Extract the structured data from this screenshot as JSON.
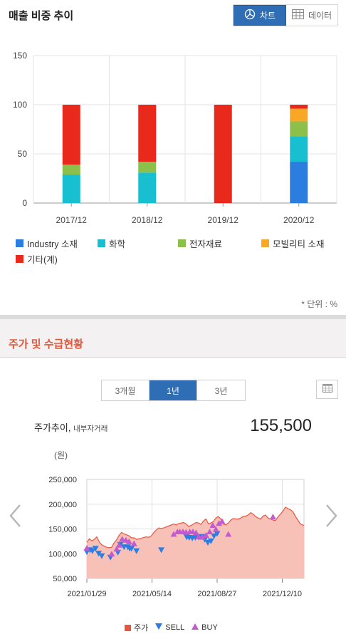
{
  "section1": {
    "title": "매출 비중 추이",
    "toggle": {
      "chart_label": "차트",
      "data_label": "데이터"
    },
    "unit_note": "* 단위 : %"
  },
  "section2": {
    "title": "주가 및 수급현황",
    "periods": [
      "3개월",
      "1년",
      "3년"
    ],
    "active_period": "1년",
    "price_title": "주가추이,",
    "price_subtitle": "내부자거래",
    "price_value": "155,500",
    "unit_label": "(원)",
    "legend": {
      "price": "주가",
      "sell": "SELL",
      "buy": "BUY"
    }
  },
  "colors": {
    "industry": "#2b7de0",
    "chem": "#17bfd1",
    "elec": "#8cc04a",
    "mobility": "#f9a825",
    "etc": "#e8291c",
    "area_fill": "#f8c1b8",
    "area_line": "#e8553e",
    "sell": "#2b7de0",
    "buy": "#c45ad1",
    "accent": "#2f6db5"
  },
  "chart_data": [
    {
      "type": "bar",
      "stacked": true,
      "categories": [
        "2017/12",
        "2018/12",
        "2019/12",
        "2020/12"
      ],
      "ylim": [
        0,
        150
      ],
      "yticks": [
        0,
        50,
        100,
        150
      ],
      "grid": true,
      "legend_position": "bottom",
      "series": [
        {
          "name": "Industry 소재",
          "color_key": "industry",
          "values": [
            0,
            0,
            0,
            42
          ]
        },
        {
          "name": "화학",
          "color_key": "chem",
          "values": [
            29,
            31,
            0,
            26
          ]
        },
        {
          "name": "전자재료",
          "color_key": "elec",
          "values": [
            10,
            11,
            0,
            15
          ]
        },
        {
          "name": "모빌리티 소재",
          "color_key": "mobility",
          "values": [
            0,
            0,
            0,
            13
          ]
        },
        {
          "name": "기타(계)",
          "color_key": "etc",
          "values": [
            61,
            58,
            100,
            4
          ]
        }
      ]
    },
    {
      "type": "area",
      "xlabels": [
        "2021/01/29",
        "2021/05/14",
        "2021/08/27",
        "2021/12/10"
      ],
      "ylim": [
        50000,
        250000
      ],
      "yticks": [
        "50,000",
        "100,000",
        "150,000",
        "200,000",
        "250,000"
      ],
      "ytick_values": [
        50000,
        100000,
        150000,
        200000,
        250000
      ],
      "legend_position": "bottom",
      "x_range_days": [
        0,
        350
      ],
      "xlabel_days": [
        0,
        105,
        210,
        315
      ],
      "series_price": {
        "name": "주가",
        "days": [
          0,
          4,
          8,
          12,
          16,
          20,
          24,
          28,
          32,
          36,
          40,
          44,
          48,
          52,
          56,
          60,
          64,
          68,
          72,
          76,
          80,
          84,
          88,
          92,
          96,
          100,
          104,
          108,
          112,
          116,
          120,
          124,
          128,
          132,
          136,
          140,
          144,
          148,
          152,
          156,
          160,
          164,
          168,
          172,
          176,
          180,
          184,
          188,
          192,
          196,
          200,
          204,
          208,
          212,
          216,
          220,
          224,
          228,
          232,
          236,
          240,
          244,
          248,
          252,
          256,
          260,
          264,
          268,
          272,
          276,
          280,
          284,
          288,
          292,
          296,
          300,
          304,
          308,
          312,
          316,
          320,
          324,
          328,
          332,
          336,
          340,
          344,
          350
        ],
        "values": [
          123000,
          130000,
          126000,
          129000,
          134000,
          124000,
          118000,
          115000,
          113000,
          112000,
          113000,
          122000,
          128000,
          137000,
          143000,
          140000,
          138000,
          136000,
          132000,
          132000,
          129000,
          130000,
          131000,
          133000,
          134000,
          133000,
          136000,
          143000,
          148000,
          152000,
          151000,
          152000,
          154000,
          156000,
          158000,
          160000,
          158000,
          161000,
          162000,
          163000,
          160000,
          155000,
          157000,
          160000,
          163000,
          162000,
          159000,
          166000,
          170000,
          160000,
          162000,
          165000,
          172000,
          175000,
          170000,
          160000,
          158000,
          162000,
          168000,
          171000,
          170000,
          170000,
          172000,
          175000,
          176000,
          178000,
          183000,
          180000,
          175000,
          172000,
          170000,
          176000,
          178000,
          172000,
          170000,
          168000,
          167000,
          174000,
          180000,
          186000,
          194000,
          191000,
          189000,
          185000,
          176000,
          168000,
          160000,
          157000
        ]
      },
      "series_sell": {
        "name": "SELL",
        "days": [
          0,
          5,
          9,
          14,
          19,
          24,
          38,
          50,
          54,
          60,
          66,
          69,
          72,
          80,
          120,
          161,
          165,
          170,
          175,
          180,
          186,
          190,
          195,
          200,
          205,
          210
        ],
        "values": [
          103000,
          107000,
          105000,
          110000,
          100000,
          95000,
          92000,
          102000,
          118000,
          113000,
          113000,
          110000,
          110000,
          105000,
          107000,
          133000,
          132000,
          131000,
          132000,
          133000,
          134000,
          128000,
          122000,
          125000,
          135000,
          140000
        ]
      },
      "series_buy": {
        "name": "BUY",
        "days": [
          0,
          40,
          48,
          52,
          57,
          63,
          68,
          76,
          140,
          146,
          150,
          155,
          160,
          166,
          171,
          176,
          180,
          186,
          192,
          198,
          203,
          208,
          213,
          218,
          228,
          300
        ],
        "values": [
          112000,
          100000,
          110000,
          118000,
          130000,
          128000,
          125000,
          121000,
          140000,
          145000,
          145000,
          145000,
          144000,
          145000,
          145000,
          143000,
          135000,
          134000,
          138000,
          145000,
          158000,
          150000,
          162000,
          166000,
          140000,
          175000
        ]
      }
    }
  ]
}
